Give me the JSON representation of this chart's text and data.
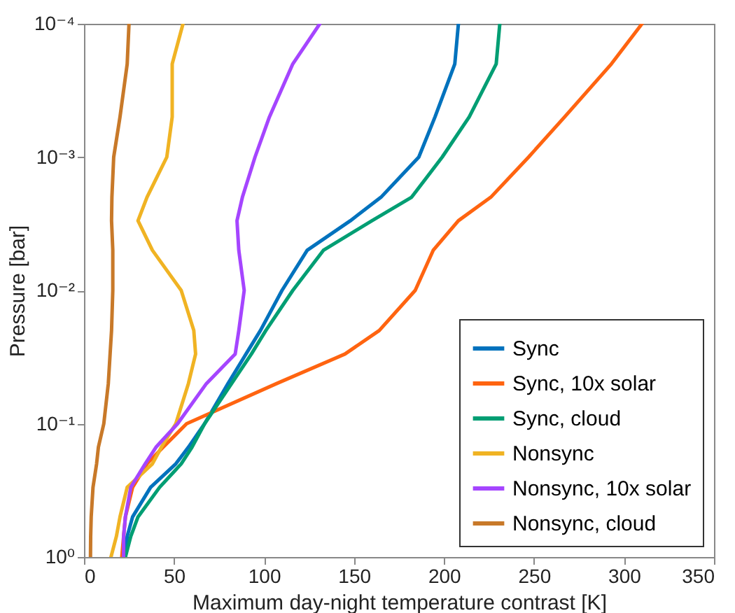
{
  "chart_data": {
    "type": "line",
    "xlabel": "Maximum day-night temperature contrast [K]",
    "ylabel": "Pressure [bar]",
    "log": "y",
    "xlim": [
      0,
      350
    ],
    "xticks": [
      0,
      50,
      100,
      150,
      200,
      250,
      300,
      350
    ],
    "ylim": [
      1,
      0.0001
    ],
    "yticks": [
      {
        "value": 0.0001,
        "label": "10⁻⁴"
      },
      {
        "value": 0.001,
        "label": "10⁻³"
      },
      {
        "value": 0.01,
        "label": "10⁻²"
      },
      {
        "value": 0.1,
        "label": "10⁻¹"
      },
      {
        "value": 1,
        "label": "10⁰"
      }
    ],
    "grid": false,
    "legend": "bottom right",
    "line_style": "solid",
    "series": [
      {
        "name": "Sync",
        "color": "#0072bd",
        "x": [
          208,
          206,
          195,
          186,
          165,
          148,
          124,
          110,
          98,
          90,
          80,
          67,
          58,
          51,
          37,
          27,
          24,
          23
        ],
        "values": [
          0.0001,
          0.0002,
          0.0005,
          0.001,
          0.002,
          0.003,
          0.005,
          0.01,
          0.02,
          0.03,
          0.05,
          0.1,
          0.15,
          0.2,
          0.3,
          0.5,
          0.7,
          1
        ]
      },
      {
        "name": "Sync, 10x solar",
        "color": "#ff6410",
        "x": [
          310,
          293,
          267,
          247,
          226,
          208,
          194,
          184,
          164,
          145,
          107,
          57,
          44,
          35,
          27,
          23,
          22,
          21
        ],
        "values": [
          0.0001,
          0.0002,
          0.0005,
          0.001,
          0.002,
          0.003,
          0.005,
          0.01,
          0.02,
          0.03,
          0.05,
          0.1,
          0.15,
          0.2,
          0.3,
          0.5,
          0.7,
          1
        ]
      },
      {
        "name": "Sync, cloud",
        "color": "#009e73",
        "x": [
          231,
          229,
          214,
          199,
          182,
          160,
          133,
          116,
          101,
          93,
          82,
          67,
          60,
          54,
          42,
          30,
          26,
          23
        ],
        "values": [
          0.0001,
          0.0002,
          0.0005,
          0.001,
          0.002,
          0.003,
          0.005,
          0.01,
          0.02,
          0.03,
          0.05,
          0.1,
          0.15,
          0.2,
          0.3,
          0.5,
          0.7,
          1
        ]
      },
      {
        "name": "Nonsync",
        "color": "#f0b323",
        "x": [
          55,
          49,
          49,
          46,
          35,
          30,
          38,
          54,
          61,
          62,
          58,
          51,
          43,
          38,
          24,
          20,
          18,
          15
        ],
        "values": [
          0.0001,
          0.0002,
          0.0005,
          0.001,
          0.002,
          0.003,
          0.005,
          0.01,
          0.02,
          0.03,
          0.05,
          0.1,
          0.15,
          0.2,
          0.3,
          0.5,
          0.7,
          1
        ]
      },
      {
        "name": "Nonsync, 10x solar",
        "color": "#a545ff",
        "x": [
          131,
          116,
          103,
          95,
          88,
          85,
          86,
          89,
          86,
          84,
          68,
          52,
          40,
          34,
          26,
          23,
          22,
          22
        ],
        "values": [
          0.0001,
          0.0002,
          0.0005,
          0.001,
          0.002,
          0.003,
          0.005,
          0.01,
          0.02,
          0.03,
          0.05,
          0.1,
          0.15,
          0.2,
          0.3,
          0.5,
          0.7,
          1
        ]
      },
      {
        "name": "Nonsync, cloud",
        "color": "#c87929",
        "x": [
          25,
          24,
          20,
          16.5,
          15.5,
          15.3,
          16,
          16,
          15.3,
          14.5,
          13.5,
          11,
          8,
          7,
          5,
          4,
          3.7,
          3.6
        ],
        "values": [
          0.0001,
          0.0002,
          0.0005,
          0.001,
          0.002,
          0.003,
          0.005,
          0.01,
          0.02,
          0.03,
          0.05,
          0.1,
          0.15,
          0.2,
          0.3,
          0.5,
          0.7,
          1
        ]
      }
    ]
  }
}
